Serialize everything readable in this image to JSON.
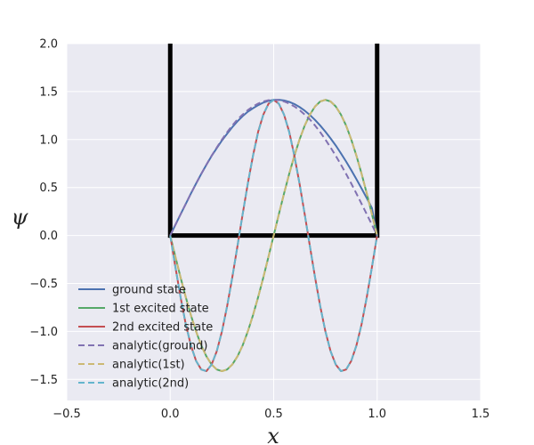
{
  "chart_data": {
    "type": "line",
    "xlabel": "x",
    "ylabel": "ψ",
    "xlim": [
      -0.5,
      1.5
    ],
    "ylim": [
      -1.72,
      2.0
    ],
    "xticks": [
      -0.5,
      0.0,
      0.5,
      1.0,
      1.5
    ],
    "xtick_labels": [
      "−0.5",
      "0.0",
      "0.5",
      "1.0",
      "1.5"
    ],
    "yticks": [
      -1.5,
      -1.0,
      -0.5,
      0.0,
      0.5,
      1.0,
      1.5,
      2.0
    ],
    "ytick_labels": [
      "−1.5",
      "−1.0",
      "−0.5",
      "0.0",
      "0.5",
      "1.0",
      "1.5",
      "2.0"
    ],
    "grid": true,
    "legend_position": "lower-left",
    "potential_well": {
      "x": [
        0.0,
        0.0,
        1.0,
        1.0
      ],
      "y": [
        2.0,
        0.0,
        0.0,
        2.0
      ],
      "color": "#000000"
    },
    "x": [
      0.0,
      0.025,
      0.05,
      0.075,
      0.1,
      0.125,
      0.15,
      0.175,
      0.2,
      0.225,
      0.25,
      0.275,
      0.3,
      0.325,
      0.35,
      0.375,
      0.4,
      0.425,
      0.45,
      0.475,
      0.5,
      0.525,
      0.55,
      0.575,
      0.6,
      0.625,
      0.65,
      0.675,
      0.7,
      0.725,
      0.75,
      0.775,
      0.8,
      0.825,
      0.85,
      0.875,
      0.9,
      0.925,
      0.95,
      0.975,
      1.0
    ],
    "series": [
      {
        "name": "ground state",
        "color": "#4C72B0",
        "dash": "solid",
        "values": [
          0.0,
          0.111,
          0.221,
          0.328,
          0.437,
          0.541,
          0.642,
          0.737,
          0.829,
          0.911,
          0.99,
          1.061,
          1.129,
          1.19,
          1.244,
          1.29,
          1.326,
          1.358,
          1.385,
          1.403,
          1.413,
          1.414,
          1.408,
          1.393,
          1.37,
          1.339,
          1.301,
          1.256,
          1.204,
          1.146,
          1.082,
          1.012,
          0.938,
          0.856,
          0.771,
          0.681,
          0.587,
          0.489,
          0.389,
          0.285,
          0.0
        ]
      },
      {
        "name": "1st excited state",
        "color": "#55A868",
        "dash": "solid",
        "values": [
          0.0,
          -0.221,
          -0.437,
          -0.642,
          -0.831,
          -1.0,
          -1.146,
          -1.26,
          -1.345,
          -1.397,
          -1.414,
          -1.397,
          -1.345,
          -1.26,
          -1.146,
          -1.0,
          -0.831,
          -0.642,
          -0.437,
          -0.221,
          0.0,
          0.221,
          0.437,
          0.642,
          0.831,
          1.0,
          1.146,
          1.26,
          1.345,
          1.397,
          1.414,
          1.397,
          1.345,
          1.26,
          1.146,
          1.0,
          0.831,
          0.642,
          0.437,
          0.221,
          0.0
        ]
      },
      {
        "name": "2nd excited state",
        "color": "#C44E52",
        "dash": "solid",
        "values": [
          0.0,
          -0.328,
          -0.642,
          -0.924,
          -1.146,
          -1.307,
          -1.397,
          -1.414,
          -1.345,
          -1.206,
          -1.0,
          -0.737,
          -0.437,
          -0.111,
          0.221,
          0.541,
          0.831,
          1.082,
          1.26,
          1.373,
          1.414,
          1.373,
          1.26,
          1.082,
          0.831,
          0.541,
          0.221,
          -0.111,
          -0.437,
          -0.737,
          -1.0,
          -1.206,
          -1.345,
          -1.414,
          -1.397,
          -1.307,
          -1.146,
          -0.924,
          -0.642,
          -0.328,
          0.0
        ]
      },
      {
        "name": "analytic(ground)",
        "color": "#8172B2",
        "dash": "dashed",
        "values": [
          0.0,
          0.111,
          0.221,
          0.329,
          0.437,
          0.541,
          0.642,
          0.738,
          0.831,
          0.917,
          1.0,
          1.076,
          1.146,
          1.209,
          1.26,
          1.307,
          1.345,
          1.375,
          1.397,
          1.41,
          1.414,
          1.41,
          1.397,
          1.375,
          1.345,
          1.307,
          1.26,
          1.209,
          1.146,
          1.076,
          1.0,
          0.917,
          0.831,
          0.738,
          0.642,
          0.541,
          0.437,
          0.329,
          0.221,
          0.111,
          0.0
        ]
      },
      {
        "name": "analytic(1st)",
        "color": "#CCB974",
        "dash": "dashed",
        "values": [
          0.0,
          -0.221,
          -0.437,
          -0.642,
          -0.831,
          -1.0,
          -1.146,
          -1.26,
          -1.345,
          -1.397,
          -1.414,
          -1.397,
          -1.345,
          -1.26,
          -1.146,
          -1.0,
          -0.831,
          -0.642,
          -0.437,
          -0.221,
          0.0,
          0.221,
          0.437,
          0.642,
          0.831,
          1.0,
          1.146,
          1.26,
          1.345,
          1.397,
          1.414,
          1.397,
          1.345,
          1.26,
          1.146,
          1.0,
          0.831,
          0.642,
          0.437,
          0.221,
          0.0
        ]
      },
      {
        "name": "analytic(2nd)",
        "color": "#64B5CD",
        "dash": "dashed",
        "values": [
          0.0,
          -0.329,
          -0.642,
          -0.924,
          -1.146,
          -1.307,
          -1.397,
          -1.414,
          -1.345,
          -1.206,
          -1.0,
          -0.738,
          -0.437,
          -0.111,
          0.221,
          0.541,
          0.831,
          1.076,
          1.26,
          1.375,
          1.414,
          1.375,
          1.26,
          1.076,
          0.831,
          0.541,
          0.221,
          -0.111,
          -0.437,
          -0.738,
          -1.0,
          -1.206,
          -1.345,
          -1.414,
          -1.397,
          -1.307,
          -1.146,
          -0.924,
          -0.642,
          -0.329,
          0.0
        ]
      }
    ]
  }
}
